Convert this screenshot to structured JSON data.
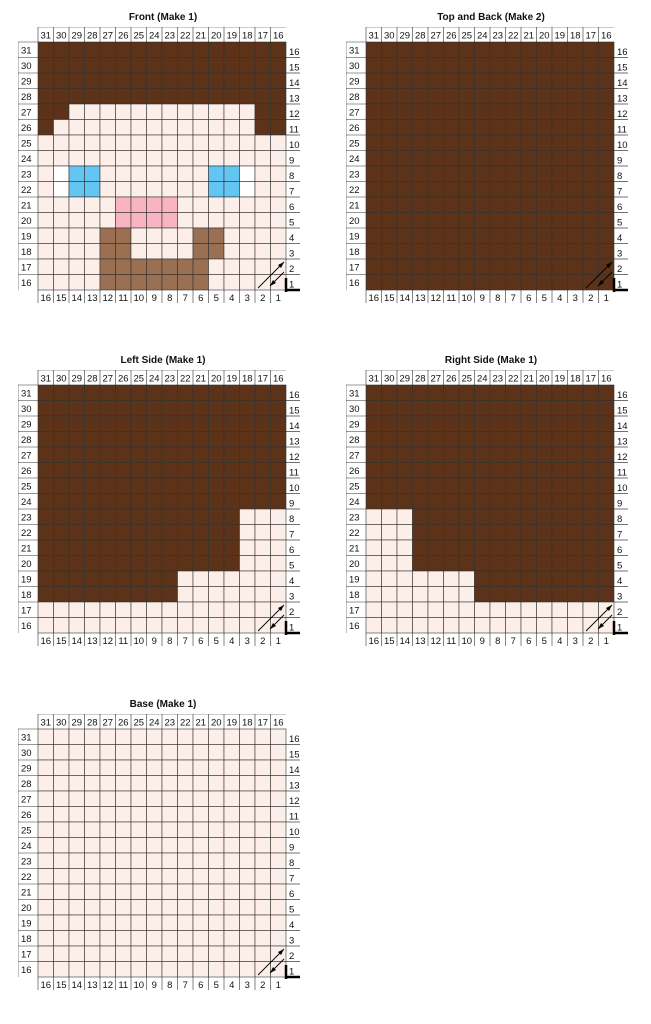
{
  "colors": {
    "cream": "#fcf1ec",
    "brown": "#5c3318",
    "skin": "#fcefe9",
    "white": "#ffffff",
    "blue": "#63c5f2",
    "pink": "#f9b4c2",
    "tan": "#9a6f52",
    "grid": "#333333"
  },
  "labels": {
    "top": [
      "31",
      "30",
      "29",
      "28",
      "27",
      "26",
      "25",
      "24",
      "23",
      "22",
      "21",
      "20",
      "19",
      "18",
      "17",
      "16"
    ],
    "left": [
      "31",
      "30",
      "29",
      "28",
      "27",
      "26",
      "25",
      "24",
      "23",
      "22",
      "21",
      "20",
      "19",
      "18",
      "17",
      "16"
    ],
    "right": [
      "16",
      "15",
      "14",
      "13",
      "12",
      "11",
      "10",
      "9",
      "8",
      "7",
      "6",
      "5",
      "4",
      "3",
      "2",
      "1"
    ],
    "bottom": [
      "16",
      "15",
      "14",
      "13",
      "12",
      "11",
      "10",
      "9",
      "8",
      "7",
      "6",
      "5",
      "4",
      "3",
      "2",
      "1"
    ]
  },
  "panels": [
    {
      "title": "Front (Make 1)",
      "palette": {
        "b": "#5c3318",
        "s": "#fcefe9",
        "w": "#ffffff",
        "c": "#63c5f2",
        "p": "#f9b4c2",
        "t": "#9a6f52"
      },
      "rows": [
        "bbbbbbbbbbbbbbbb",
        "bbbbbbbbbbbbbbbb",
        "bbbbbbbbbbbbbbbb",
        "bbbbbbbbbbbbbbbb",
        "bbssssssssssssbb",
        "bsssssssssssssbb",
        "ssssssssssssssss",
        "ssssssssssssssss",
        "swccsssssssccwss",
        "swccsssssssccwss",
        "sssssppppsssssss",
        "sssssppppsssssss",
        "ssssttssssttssss",
        "ssssttssssttssss",
        "sssstttttttsssss",
        "sssstttttttsssss"
      ]
    },
    {
      "title": "Top and Back (Make 2)",
      "palette": {
        "b": "#5c3318"
      },
      "rows": [
        "bbbbbbbbbbbbbbbb",
        "bbbbbbbbbbbbbbbb",
        "bbbbbbbbbbbbbbbb",
        "bbbbbbbbbbbbbbbb",
        "bbbbbbbbbbbbbbbb",
        "bbbbbbbbbbbbbbbb",
        "bbbbbbbbbbbbbbbb",
        "bbbbbbbbbbbbbbbb",
        "bbbbbbbbbbbbbbbb",
        "bbbbbbbbbbbbbbbb",
        "bbbbbbbbbbbbbbbb",
        "bbbbbbbbbbbbbbbb",
        "bbbbbbbbbbbbbbbb",
        "bbbbbbbbbbbbbbbb",
        "bbbbbbbbbbbbbbbb",
        "bbbbbbbbbbbbbbbb"
      ]
    },
    {
      "title": "Left Side (Make 1)",
      "palette": {
        "b": "#5c3318",
        "s": "#fcefe9"
      },
      "rows": [
        "bbbbbbbbbbbbbbbb",
        "bbbbbbbbbbbbbbbb",
        "bbbbbbbbbbbbbbbb",
        "bbbbbbbbbbbbbbbb",
        "bbbbbbbbbbbbbbbb",
        "bbbbbbbbbbbbbbbb",
        "bbbbbbbbbbbbbbbb",
        "bbbbbbbbbbbbbbbb",
        "bbbbbbbbbbbbbsss",
        "bbbbbbbbbbbbbsss",
        "bbbbbbbbbbbbbsss",
        "bbbbbbbbbbbbbsss",
        "bbbbbbbbbsssssss",
        "bbbbbbbbbsssssss",
        "ssssssssssssssss",
        "ssssssssssssssss"
      ]
    },
    {
      "title": "Right Side (Make 1)",
      "palette": {
        "b": "#5c3318",
        "s": "#fcefe9"
      },
      "rows": [
        "bbbbbbbbbbbbbbbb",
        "bbbbbbbbbbbbbbbb",
        "bbbbbbbbbbbbbbbb",
        "bbbbbbbbbbbbbbbb",
        "bbbbbbbbbbbbbbbb",
        "bbbbbbbbbbbbbbbb",
        "bbbbbbbbbbbbbbbb",
        "bbbbbbbbbbbbbbbb",
        "sssbbbbbbbbbbbbb",
        "sssbbbbbbbbbbbbb",
        "sssbbbbbbbbbbbbb",
        "sssbbbbbbbbbbbbb",
        "sssssssbbbbbbbbb",
        "sssssssbbbbbbbbb",
        "ssssssssssssssss",
        "ssssssssssssssss"
      ]
    },
    {
      "title": "Base (Make 1)",
      "palette": {
        "s": "#fcefe9"
      },
      "rows": [
        "ssssssssssssssss",
        "ssssssssssssssss",
        "ssssssssssssssss",
        "ssssssssssssssss",
        "ssssssssssssssss",
        "ssssssssssssssss",
        "ssssssssssssssss",
        "ssssssssssssssss",
        "ssssssssssssssss",
        "ssssssssssssssss",
        "ssssssssssssssss",
        "ssssssssssssssss",
        "ssssssssssssssss",
        "ssssssssssssssss",
        "ssssssssssssssss",
        "ssssssssssssssss"
      ]
    }
  ]
}
